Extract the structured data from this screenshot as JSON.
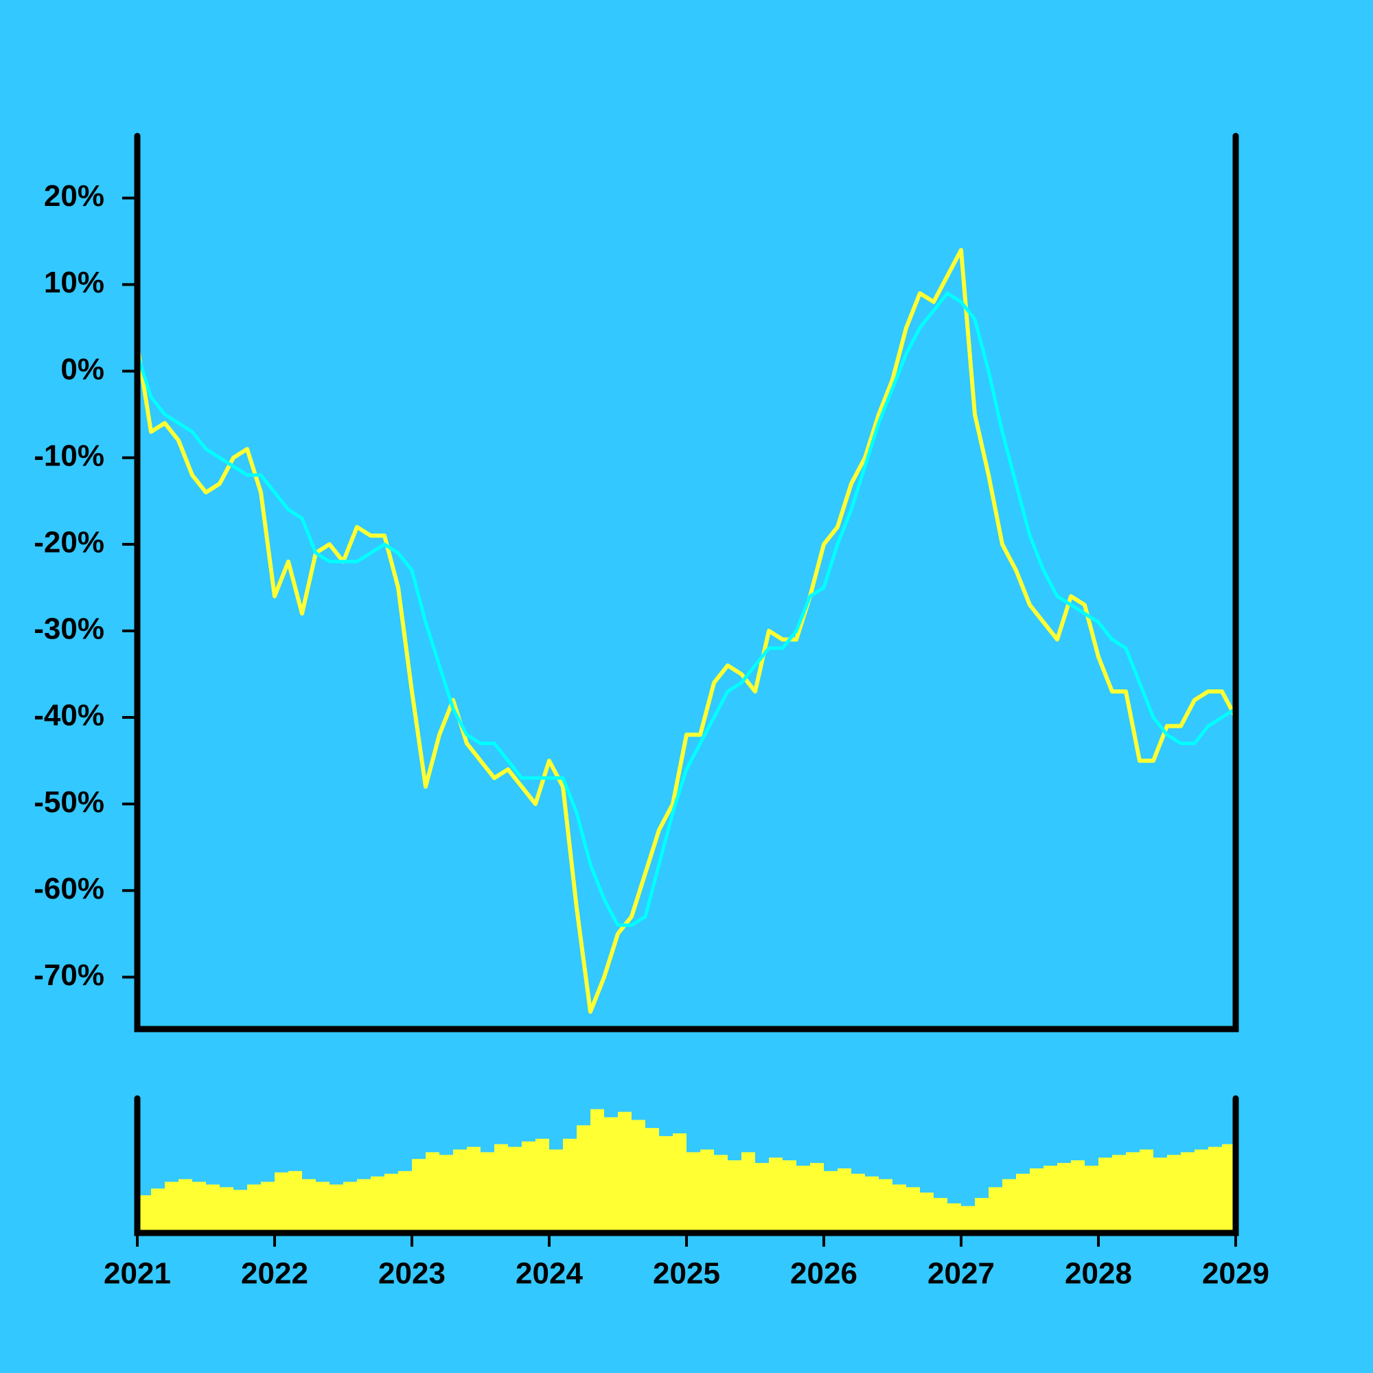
{
  "chart_data": [
    {
      "type": "line",
      "x": [
        2021.0,
        2021.1,
        2021.2,
        2021.3,
        2021.4,
        2021.5,
        2021.6,
        2021.7,
        2021.8,
        2021.9,
        2022.0,
        2022.1,
        2022.2,
        2022.3,
        2022.4,
        2022.5,
        2022.6,
        2022.7,
        2022.8,
        2022.9,
        2023.0,
        2023.1,
        2023.2,
        2023.3,
        2023.4,
        2023.5,
        2023.6,
        2023.7,
        2023.8,
        2023.9,
        2024.0,
        2024.1,
        2024.2,
        2024.3,
        2024.4,
        2024.5,
        2024.6,
        2024.7,
        2024.8,
        2024.9,
        2025.0,
        2025.1,
        2025.2,
        2025.3,
        2025.4,
        2025.5,
        2025.6,
        2025.7,
        2025.8,
        2025.9,
        2026.0,
        2026.1,
        2026.2,
        2026.3,
        2026.4,
        2026.5,
        2026.6,
        2026.7,
        2026.8,
        2026.9,
        2027.0,
        2027.1,
        2027.2,
        2027.3,
        2027.4,
        2027.5,
        2027.6,
        2027.7,
        2027.8,
        2027.9,
        2028.0,
        2028.1,
        2028.2,
        2028.3,
        2028.4,
        2028.5,
        2028.6,
        2028.7,
        2028.8,
        2028.9,
        2029.0
      ],
      "series": [
        {
          "color": "#ffff33",
          "values": [
            3,
            -7,
            -6,
            -8,
            -12,
            -14,
            -13,
            -10,
            -9,
            -14,
            -26,
            -22,
            -28,
            -21,
            -20,
            -22,
            -18,
            -19,
            -19,
            -25,
            -37,
            -48,
            -42,
            -38,
            -43,
            -45,
            -47,
            -46,
            -48,
            -50,
            -45,
            -48,
            -62,
            -74,
            -70,
            -65,
            -63,
            -58,
            -53,
            -50,
            -42,
            -42,
            -36,
            -34,
            -35,
            -37,
            -30,
            -31,
            -31,
            -26,
            -20,
            -18,
            -13,
            -10,
            -5,
            -1,
            5,
            9,
            8,
            11,
            14,
            -5,
            -12,
            -20,
            -23,
            -27,
            -29,
            -31,
            -26,
            -27,
            -33,
            -37,
            -37,
            -45,
            -45,
            -41,
            -41,
            -38,
            -37,
            -37,
            -40
          ]
        },
        {
          "color": "#00ffff",
          "values": [
            2,
            -3,
            -5,
            -6,
            -7,
            -9,
            -10,
            -11,
            -12,
            -12,
            -14,
            -16,
            -17,
            -21,
            -22,
            -22,
            -22,
            -21,
            -20,
            -21,
            -23,
            -29,
            -34,
            -39,
            -42,
            -43,
            -43,
            -45,
            -47,
            -47,
            -47,
            -47,
            -51,
            -57,
            -61,
            -64,
            -64,
            -63,
            -57,
            -51,
            -46,
            -43,
            -40,
            -37,
            -36,
            -34,
            -32,
            -32,
            -30,
            -26,
            -25,
            -20,
            -16,
            -11,
            -6,
            -2,
            2,
            5,
            7,
            9,
            8,
            6,
            0,
            -7,
            -13,
            -19,
            -23,
            -26,
            -27,
            -28,
            -29,
            -31,
            -32,
            -36,
            -40,
            -42,
            -43,
            -43,
            -41,
            -40,
            -39
          ]
        }
      ],
      "xlim": [
        2021,
        2029
      ],
      "ylim": [
        -76,
        24
      ],
      "yticks": [
        {
          "value": 20,
          "label": "20%"
        },
        {
          "value": 10,
          "label": "10%"
        },
        {
          "value": 0,
          "label": "0%"
        },
        {
          "value": -10,
          "label": "-10%"
        },
        {
          "value": -20,
          "label": "-20%"
        },
        {
          "value": -30,
          "label": "-30%"
        },
        {
          "value": -40,
          "label": "-40%"
        },
        {
          "value": -50,
          "label": "-50%"
        },
        {
          "value": -60,
          "label": "-60%"
        },
        {
          "value": -70,
          "label": "-70%"
        }
      ]
    },
    {
      "type": "bar",
      "x": [
        2021.0,
        2021.1,
        2021.2,
        2021.3,
        2021.4,
        2021.5,
        2021.6,
        2021.7,
        2021.8,
        2021.9,
        2022.0,
        2022.1,
        2022.2,
        2022.3,
        2022.4,
        2022.5,
        2022.6,
        2022.7,
        2022.8,
        2022.9,
        2023.0,
        2023.1,
        2023.2,
        2023.3,
        2023.4,
        2023.5,
        2023.6,
        2023.7,
        2023.8,
        2023.9,
        2024.0,
        2024.1,
        2024.2,
        2024.3,
        2024.4,
        2024.5,
        2024.6,
        2024.7,
        2024.8,
        2024.9,
        2025.0,
        2025.1,
        2025.2,
        2025.3,
        2025.4,
        2025.5,
        2025.6,
        2025.7,
        2025.8,
        2025.9,
        2026.0,
        2026.1,
        2026.2,
        2026.3,
        2026.4,
        2026.5,
        2026.6,
        2026.7,
        2026.8,
        2026.9,
        2027.0,
        2027.1,
        2027.2,
        2027.3,
        2027.4,
        2027.5,
        2027.6,
        2027.7,
        2027.8,
        2027.9,
        2028.0,
        2028.1,
        2028.2,
        2028.3,
        2028.4,
        2028.5,
        2028.6,
        2028.7,
        2028.8,
        2028.9,
        2029.0
      ],
      "values": [
        28,
        33,
        38,
        40,
        38,
        36,
        34,
        32,
        36,
        38,
        45,
        46,
        40,
        38,
        36,
        38,
        40,
        42,
        44,
        46,
        55,
        60,
        58,
        62,
        64,
        60,
        66,
        64,
        68,
        70,
        62,
        70,
        80,
        92,
        86,
        90,
        84,
        78,
        72,
        74,
        60,
        62,
        58,
        54,
        60,
        52,
        56,
        54,
        50,
        52,
        46,
        48,
        44,
        42,
        40,
        36,
        34,
        30,
        26,
        22,
        20,
        26,
        34,
        40,
        44,
        48,
        50,
        52,
        54,
        50,
        56,
        58,
        60,
        62,
        56,
        58,
        60,
        62,
        64,
        66,
        62
      ],
      "color": "#ffff33",
      "xlim": [
        2021,
        2029
      ],
      "ylim": [
        0,
        100
      ],
      "xticks": [
        2021,
        2022,
        2023,
        2024,
        2025,
        2026,
        2027,
        2028,
        2029
      ]
    }
  ]
}
